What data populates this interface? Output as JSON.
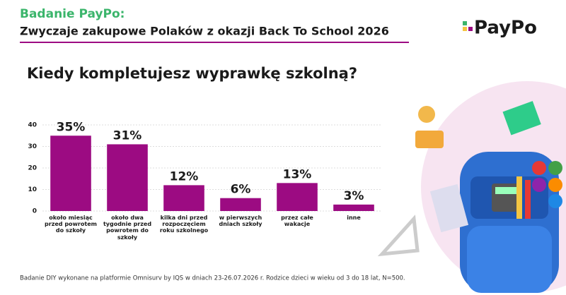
{
  "header": {
    "title": "Badanie PayPo:",
    "subtitle": "Zwyczaje zakupowe Polaków z okazji Back To School 2026",
    "logo": "PayPo"
  },
  "chart_data": {
    "type": "bar",
    "title": "Kiedy kompletujesz wyprawkę szkolną?",
    "categories": [
      "około miesiąc przed powrotem do szkoły",
      "około dwa tygodnie przed powrotem do szkoły",
      "kilka dni przed rozpoczęciem roku szkolnego",
      "w pierwszych dniach szkoły",
      "przez całe wakacje",
      "inne"
    ],
    "values": [
      35,
      31,
      12,
      6,
      13,
      3
    ],
    "value_labels": [
      "35%",
      "31%",
      "12%",
      "6%",
      "13%",
      "3%"
    ],
    "color": "#9c0b82",
    "ylim": [
      0,
      40
    ],
    "yticks": [
      0,
      10,
      20,
      30,
      40
    ],
    "grid": true
  },
  "footnote": "Badanie DIY wykonane na platformie Omnisurv by IQS w dniach 23-26.07.2026 r. Rodzice dzieci w wieku od 3 do 18 lat, N=500."
}
